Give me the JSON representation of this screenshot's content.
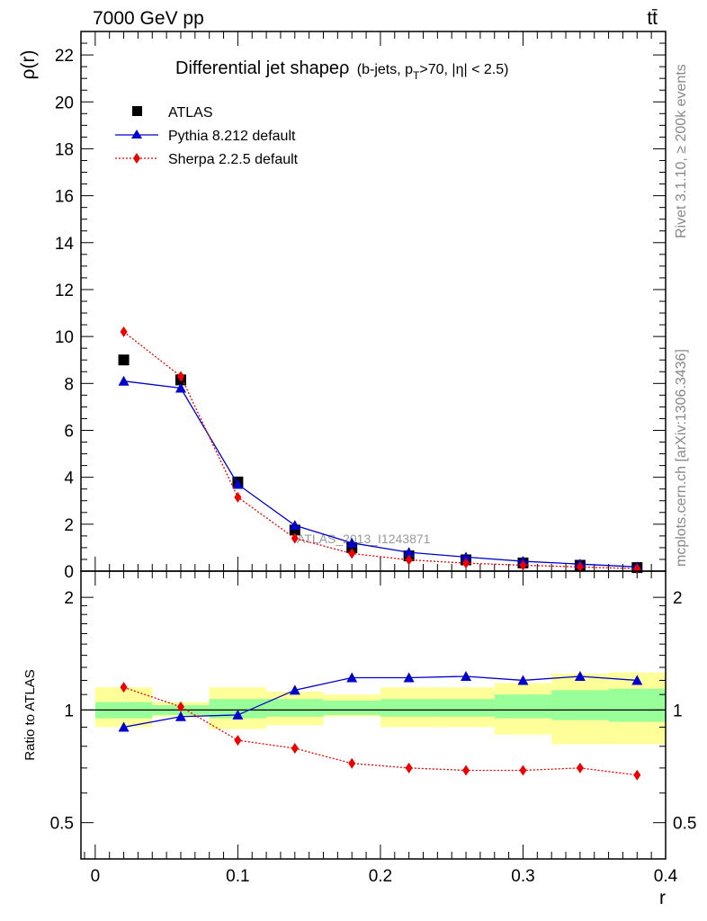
{
  "header": {
    "energy_label": "7000 GeV pp",
    "process_label": "tt̄"
  },
  "side_labels": {
    "rivet": "Rivet 3.1.10, ≥ 200k events",
    "mcplots": "mcplots.cern.ch [arXiv:1306.3436]"
  },
  "watermark": "ATLAS_2013_I1243871",
  "chart_data": [
    {
      "type": "scatter",
      "title_main": "Differential jet shapeρ",
      "title_sub_prefix": "(b-jets, p",
      "title_sub_subscript": "T",
      "title_sub_suffix": ">70, |η| < 2.5)",
      "ylabel": "ρ(r)",
      "xlabel": "r",
      "xlim": [
        -0.01,
        0.4
      ],
      "ylim": [
        0,
        23
      ],
      "yticks": [
        0,
        2,
        4,
        6,
        8,
        10,
        12,
        14,
        16,
        18,
        20,
        22
      ],
      "ytick_labels": [
        "0",
        "2",
        "4",
        "6",
        "8",
        "10",
        "12",
        "14",
        "16",
        "18",
        "20",
        "22"
      ],
      "x": [
        0.02,
        0.06,
        0.1,
        0.14,
        0.18,
        0.22,
        0.26,
        0.3,
        0.34,
        0.38
      ],
      "series": [
        {
          "name": "ATLAS",
          "marker": "square",
          "color": "#000000",
          "line": "none",
          "values": [
            9.0,
            8.15,
            3.8,
            1.75,
            1.0,
            0.65,
            0.48,
            0.35,
            0.25,
            0.15
          ]
        },
        {
          "name": "Pythia 8.212 default",
          "marker": "triangle",
          "color": "#0000cc",
          "line": "solid",
          "values": [
            8.1,
            7.8,
            3.7,
            1.95,
            1.2,
            0.8,
            0.6,
            0.42,
            0.3,
            0.18
          ]
        },
        {
          "name": "Sherpa 2.2.5 default",
          "marker": "diamond",
          "color": "#ee0000",
          "line": "dotted",
          "values": [
            10.2,
            8.3,
            3.15,
            1.4,
            0.75,
            0.48,
            0.34,
            0.25,
            0.18,
            0.1
          ]
        }
      ],
      "legend": "top-left"
    },
    {
      "type": "scatter",
      "ylabel": "Ratio to ATLAS",
      "xlabel": "r",
      "xlim": [
        -0.01,
        0.4
      ],
      "ylim_log": [
        0.4,
        2.35
      ],
      "yticks": [
        0.5,
        1,
        2
      ],
      "ytick_labels": [
        "0.5",
        "1",
        "2"
      ],
      "xticks": [
        0,
        0.1,
        0.2,
        0.3,
        0.4
      ],
      "xtick_labels": [
        "0",
        "0.1",
        "0.2",
        "0.3",
        "0.4"
      ],
      "x": [
        0.02,
        0.06,
        0.1,
        0.14,
        0.18,
        0.22,
        0.26,
        0.3,
        0.34,
        0.38
      ],
      "bin_edges": [
        0.0,
        0.04,
        0.08,
        0.12,
        0.16,
        0.2,
        0.24,
        0.28,
        0.32,
        0.36,
        0.4
      ],
      "band_stat": {
        "color": "#99ff99",
        "low": [
          0.95,
          0.97,
          0.95,
          0.96,
          0.97,
          0.96,
          0.96,
          0.95,
          0.94,
          0.93
        ],
        "high": [
          1.05,
          1.03,
          1.07,
          1.07,
          1.06,
          1.07,
          1.07,
          1.1,
          1.13,
          1.14
        ]
      },
      "band_total": {
        "color": "#ffff99",
        "low": [
          0.9,
          0.96,
          0.89,
          0.91,
          0.96,
          0.9,
          0.9,
          0.86,
          0.81,
          0.81
        ],
        "high": [
          1.15,
          1.05,
          1.15,
          1.12,
          1.1,
          1.15,
          1.15,
          1.18,
          1.25,
          1.26
        ]
      },
      "series": [
        {
          "name": "Pythia 8.212 default",
          "marker": "triangle",
          "color": "#0000cc",
          "line": "solid",
          "values": [
            0.9,
            0.96,
            0.97,
            1.13,
            1.22,
            1.22,
            1.23,
            1.2,
            1.23,
            1.2
          ]
        },
        {
          "name": "Sherpa 2.2.5 default",
          "marker": "diamond",
          "color": "#ee0000",
          "line": "dotted",
          "values": [
            1.15,
            1.02,
            0.83,
            0.79,
            0.72,
            0.7,
            0.69,
            0.69,
            0.7,
            0.67
          ]
        }
      ]
    }
  ]
}
